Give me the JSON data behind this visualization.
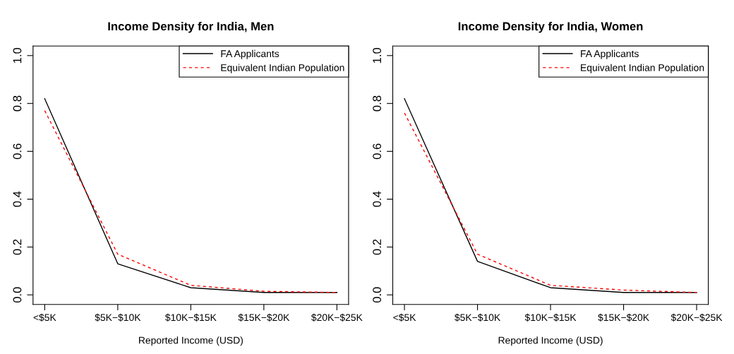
{
  "chart_data": [
    {
      "type": "line",
      "title": "Income Density for India, Men",
      "xlabel": "Reported Income (USD)",
      "categories": [
        "<$5K",
        "$5K−$10K",
        "$10K−$15K",
        "$15K−$20K",
        "$20K−$25K"
      ],
      "series": [
        {
          "name": "FA Applicants",
          "color": "#000000",
          "line_style": "solid",
          "values": [
            0.82,
            0.13,
            0.03,
            0.01,
            0.01
          ]
        },
        {
          "name": "Equivalent Indian Population",
          "color": "#ff0000",
          "line_style": "dashed",
          "values": [
            0.77,
            0.17,
            0.04,
            0.015,
            0.01
          ]
        }
      ],
      "ylim": [
        -0.04,
        1.04
      ],
      "yticks": [
        {
          "value": 0,
          "label": "0.0"
        },
        {
          "value": 0.2,
          "label": "0.2"
        },
        {
          "value": 0.4,
          "label": "0.4"
        },
        {
          "value": 0.6,
          "label": "0.6"
        },
        {
          "value": 0.8,
          "label": "0.8"
        },
        {
          "value": 1,
          "label": "1.0"
        }
      ],
      "legend": "top right",
      "grid": false
    },
    {
      "type": "line",
      "title": "Income Density for India, Women",
      "xlabel": "Reported Income (USD)",
      "categories": [
        "<$5K",
        "$5K−$10K",
        "$10K−$15K",
        "$15K−$20K",
        "$20K−$25K"
      ],
      "series": [
        {
          "name": "FA Applicants",
          "color": "#000000",
          "line_style": "solid",
          "values": [
            0.82,
            0.14,
            0.03,
            0.01,
            0.01
          ]
        },
        {
          "name": "Equivalent Indian Population",
          "color": "#ff0000",
          "line_style": "dashed",
          "values": [
            0.76,
            0.17,
            0.04,
            0.02,
            0.01
          ]
        }
      ],
      "ylim": [
        -0.04,
        1.04
      ],
      "yticks": [
        {
          "value": 0,
          "label": "0.0"
        },
        {
          "value": 0.2,
          "label": "0.2"
        },
        {
          "value": 0.4,
          "label": "0.4"
        },
        {
          "value": 0.6,
          "label": "0.6"
        },
        {
          "value": 0.8,
          "label": "0.8"
        },
        {
          "value": 1,
          "label": "1.0"
        }
      ],
      "legend": "top right",
      "grid": false
    }
  ]
}
